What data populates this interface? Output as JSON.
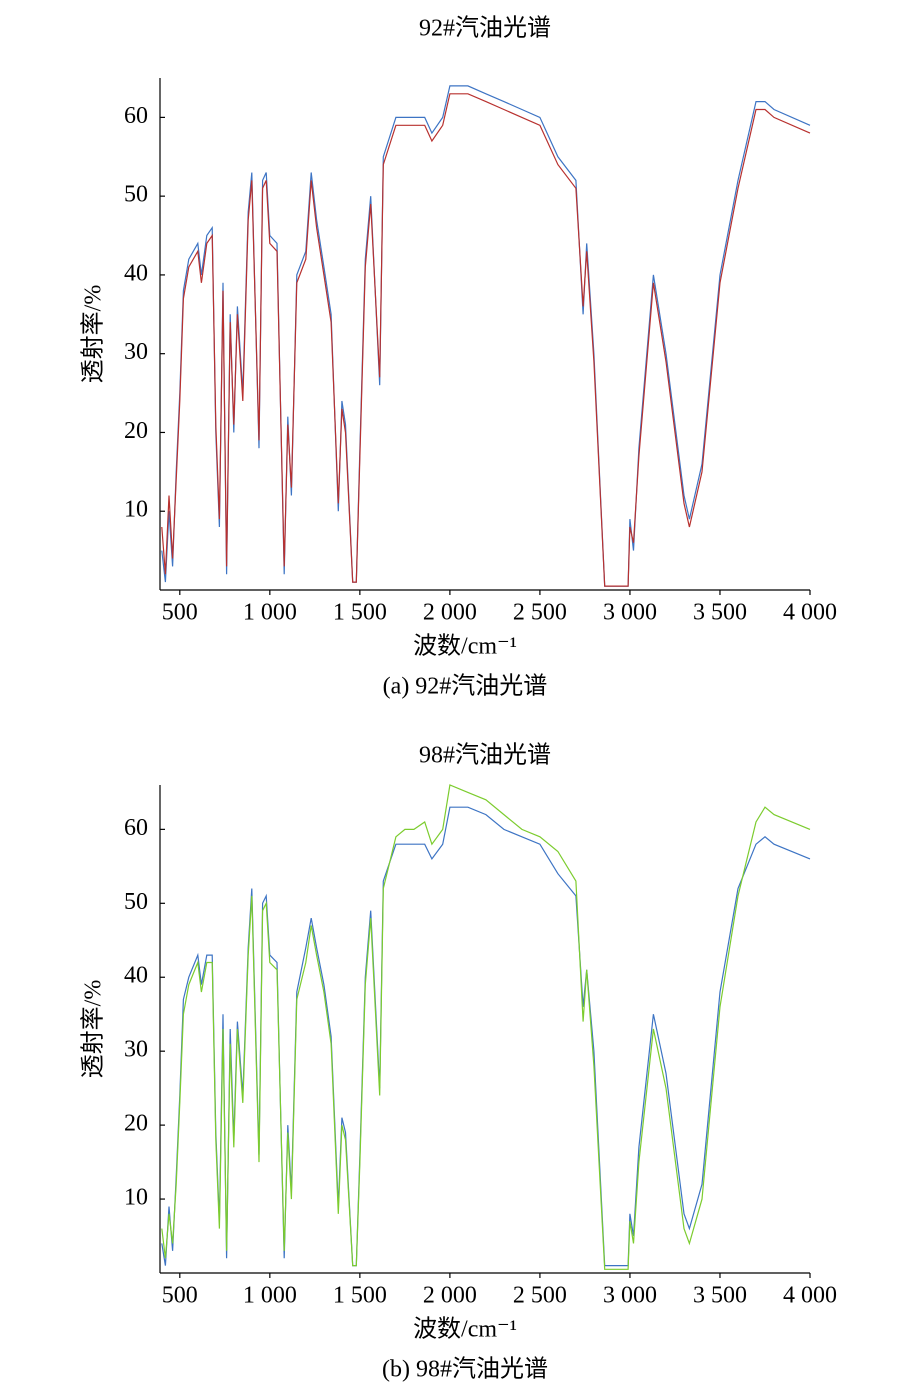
{
  "chart_data": [
    {
      "type": "line",
      "title": "92#汽油光谱",
      "caption": "(a) 92#汽油光谱",
      "xlabel": "波数/cm⁻¹",
      "ylabel": "透射率/%",
      "xlim": [
        390,
        4000
      ],
      "ylim": [
        0,
        65
      ],
      "xticks": [
        500,
        {
          "value": 1000,
          "label": "1 000"
        },
        {
          "value": 1500,
          "label": "1 500"
        },
        {
          "value": 2000,
          "label": "2 000"
        },
        {
          "value": 2500,
          "label": "2 500"
        },
        {
          "value": 3000,
          "label": "3 000"
        },
        {
          "value": 3500,
          "label": "3 500"
        },
        {
          "value": 4000,
          "label": "4 000"
        }
      ],
      "yticks": [
        10,
        20,
        30,
        40,
        50,
        60
      ],
      "x": [
        400,
        420,
        440,
        460,
        480,
        500,
        520,
        550,
        600,
        620,
        650,
        680,
        700,
        720,
        740,
        760,
        780,
        800,
        820,
        850,
        880,
        900,
        940,
        960,
        980,
        1000,
        1040,
        1080,
        1100,
        1120,
        1150,
        1200,
        1230,
        1260,
        1300,
        1340,
        1380,
        1400,
        1420,
        1460,
        1480,
        1500,
        1530,
        1560,
        1610,
        1630,
        1700,
        1750,
        1800,
        1860,
        1900,
        1960,
        2000,
        2100,
        2200,
        2300,
        2400,
        2500,
        2600,
        2700,
        2740,
        2760,
        2800,
        2860,
        2990,
        3000,
        3020,
        3050,
        3130,
        3200,
        3300,
        3330,
        3400,
        3500,
        3600,
        3700,
        3750,
        3800,
        4000
      ],
      "series": [
        {
          "color": "#3d74c4",
          "values": [
            5,
            1,
            10,
            3,
            15,
            25,
            38,
            42,
            44,
            40,
            45,
            46,
            20,
            8,
            39,
            2,
            35,
            20,
            36,
            25,
            48,
            53,
            18,
            52,
            53,
            45,
            44,
            2,
            22,
            12,
            40,
            43,
            53,
            47,
            41,
            35,
            10,
            24,
            21,
            1,
            1,
            18,
            42,
            50,
            26,
            55,
            60,
            60,
            60,
            60,
            58,
            60,
            64,
            64,
            63,
            62,
            61,
            60,
            55,
            52,
            35,
            44,
            30,
            0.5,
            0.5,
            9,
            5,
            18,
            40,
            30,
            12,
            9,
            16,
            40,
            52,
            62,
            62,
            61,
            59
          ]
        },
        {
          "color": "#b8312f",
          "values": [
            8,
            2,
            12,
            4,
            14,
            24,
            37,
            41,
            43,
            39,
            44,
            45,
            21,
            9,
            38,
            3,
            34,
            21,
            35,
            24,
            47,
            52,
            19,
            51,
            52,
            44,
            43,
            3,
            21,
            13,
            39,
            42,
            52,
            46,
            40,
            34,
            11,
            23,
            20,
            1,
            1,
            17,
            41,
            49,
            27,
            54,
            59,
            59,
            59,
            59,
            57,
            59,
            63,
            63,
            62,
            61,
            60,
            59,
            54,
            51,
            36,
            43,
            29,
            0.5,
            0.5,
            8,
            6,
            17,
            39,
            29,
            11,
            8,
            15,
            39,
            51,
            61,
            61,
            60,
            58
          ]
        }
      ]
    },
    {
      "type": "line",
      "title": "98#汽油光谱",
      "caption": "(b) 98#汽油光谱",
      "xlabel": "波数/cm⁻¹",
      "ylabel": "透射率/%",
      "xlim": [
        390,
        4000
      ],
      "ylim": [
        0,
        66
      ],
      "xticks": [
        500,
        {
          "value": 1000,
          "label": "1 000"
        },
        {
          "value": 1500,
          "label": "1 500"
        },
        {
          "value": 2000,
          "label": "2 000"
        },
        {
          "value": 2500,
          "label": "2 500"
        },
        {
          "value": 3000,
          "label": "3 000"
        },
        {
          "value": 3500,
          "label": "3 500"
        },
        {
          "value": 4000,
          "label": "4 000"
        }
      ],
      "yticks": [
        10,
        20,
        30,
        40,
        50,
        60
      ],
      "x": [
        400,
        420,
        440,
        460,
        480,
        500,
        520,
        550,
        600,
        620,
        650,
        680,
        700,
        720,
        740,
        760,
        780,
        800,
        820,
        850,
        880,
        900,
        940,
        960,
        980,
        1000,
        1040,
        1080,
        1100,
        1120,
        1150,
        1200,
        1230,
        1260,
        1300,
        1340,
        1380,
        1400,
        1420,
        1460,
        1480,
        1500,
        1530,
        1560,
        1610,
        1630,
        1700,
        1750,
        1800,
        1860,
        1900,
        1960,
        2000,
        2100,
        2200,
        2300,
        2400,
        2500,
        2600,
        2700,
        2740,
        2760,
        2800,
        2860,
        2990,
        3000,
        3020,
        3050,
        3130,
        3200,
        3300,
        3330,
        3400,
        3500,
        3600,
        3700,
        3750,
        3800,
        4000
      ],
      "series": [
        {
          "color": "#3d74c4",
          "values": [
            4,
            1,
            9,
            3,
            13,
            24,
            37,
            40,
            43,
            39,
            43,
            43,
            19,
            7,
            35,
            2,
            33,
            18,
            34,
            24,
            44,
            52,
            16,
            50,
            51,
            43,
            42,
            2,
            20,
            11,
            38,
            44,
            48,
            44,
            39,
            32,
            9,
            21,
            19,
            1,
            1,
            16,
            40,
            49,
            25,
            53,
            58,
            58,
            58,
            58,
            56,
            58,
            63,
            63,
            62,
            60,
            59,
            58,
            54,
            51,
            36,
            41,
            30,
            1,
            1,
            8,
            5,
            17,
            35,
            27,
            8,
            6,
            12,
            38,
            52,
            58,
            59,
            58,
            56
          ]
        },
        {
          "color": "#7ccc2e",
          "values": [
            6,
            2,
            8,
            4,
            12,
            23,
            35,
            39,
            42,
            38,
            42,
            42,
            18,
            6,
            33,
            3,
            31,
            17,
            33,
            23,
            43,
            51,
            15,
            49,
            50,
            42,
            41,
            3,
            19,
            10,
            37,
            42,
            47,
            43,
            38,
            31,
            8,
            20,
            18,
            1,
            1,
            15,
            39,
            48,
            24,
            52,
            59,
            60,
            60,
            61,
            58,
            60,
            66,
            65,
            64,
            62,
            60,
            59,
            57,
            53,
            34,
            41,
            28,
            0.5,
            0.5,
            7,
            4,
            15,
            33,
            25,
            6,
            4,
            10,
            36,
            51,
            61,
            63,
            62,
            60
          ]
        }
      ]
    }
  ]
}
